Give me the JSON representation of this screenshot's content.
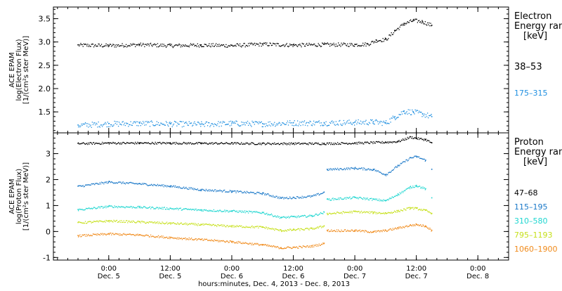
{
  "chart_data": [
    {
      "type": "scatter",
      "ylabel": [
        "ACE EPAM",
        "log(Electron Flux)",
        "[1/(cm²s ster MeV)]"
      ],
      "ylim": [
        1.05,
        3.75
      ],
      "y_ticks": [
        1.5,
        2.0,
        2.5,
        3.0,
        3.5
      ],
      "y_tick_labels": [
        "1.5",
        "2.0",
        "2.5",
        "3.0",
        "3.5"
      ],
      "legend_title": [
        "Electron",
        "Energy ranges",
        "[keV]"
      ],
      "legend_placement": "right",
      "series": [
        {
          "name": "38–53",
          "color": "#000000",
          "points": [
            [
              -0.5,
              2.94
            ],
            [
              0.0,
              2.93
            ],
            [
              0.5,
              2.95
            ],
            [
              1.0,
              2.93
            ],
            [
              1.5,
              2.94
            ],
            [
              2.0,
              2.93
            ],
            [
              2.5,
              2.96
            ],
            [
              3.0,
              2.94
            ],
            [
              3.5,
              2.95
            ],
            [
              4.0,
              2.95
            ],
            [
              4.2,
              2.96
            ],
            [
              4.35,
              3.04
            ],
            [
              4.5,
              3.06
            ],
            [
              4.65,
              3.25
            ],
            [
              4.8,
              3.4
            ],
            [
              4.95,
              3.47
            ],
            [
              5.1,
              3.44
            ],
            [
              5.25,
              3.36
            ]
          ]
        },
        {
          "name": "175–315",
          "color": "#1f8fe0",
          "points": [
            [
              -0.5,
              1.22
            ],
            [
              0.0,
              1.25
            ],
            [
              0.5,
              1.26
            ],
            [
              1.0,
              1.25
            ],
            [
              1.5,
              1.24
            ],
            [
              2.0,
              1.26
            ],
            [
              2.5,
              1.25
            ],
            [
              3.0,
              1.27
            ],
            [
              3.5,
              1.27
            ],
            [
              4.0,
              1.28
            ],
            [
              4.3,
              1.29
            ],
            [
              4.5,
              1.27
            ],
            [
              4.65,
              1.4
            ],
            [
              4.8,
              1.52
            ],
            [
              4.95,
              1.5
            ],
            [
              5.1,
              1.46
            ],
            [
              5.25,
              1.4
            ]
          ]
        }
      ]
    },
    {
      "type": "scatter",
      "ylabel": [
        "ACE EPAM",
        "log(Proton Flux)",
        "[1/(cm²s ster MeV)]"
      ],
      "ylim": [
        -1.1,
        3.8
      ],
      "y_ticks": [
        -1,
        0,
        1,
        2,
        3
      ],
      "y_tick_labels": [
        "-1",
        "0",
        "1",
        "2",
        "3"
      ],
      "legend_title": [
        "Proton",
        "Energy ranges",
        "[keV]"
      ],
      "legend_placement": "right",
      "series": [
        {
          "name": "47–68",
          "color": "#000000",
          "points": [
            [
              -0.5,
              3.4
            ],
            [
              0.0,
              3.42
            ],
            [
              0.5,
              3.42
            ],
            [
              1.0,
              3.42
            ],
            [
              1.5,
              3.41
            ],
            [
              2.0,
              3.41
            ],
            [
              2.5,
              3.4
            ],
            [
              3.0,
              3.4
            ],
            [
              3.5,
              3.4
            ],
            [
              4.0,
              3.42
            ],
            [
              4.5,
              3.45
            ],
            [
              4.7,
              3.48
            ],
            [
              4.9,
              3.65
            ],
            [
              5.0,
              3.6
            ],
            [
              5.15,
              3.55
            ],
            [
              5.25,
              3.42
            ]
          ]
        },
        {
          "name": "115–195",
          "color": "#1a78c8",
          "points": [
            [
              -0.5,
              1.75
            ],
            [
              0.0,
              1.92
            ],
            [
              0.5,
              1.85
            ],
            [
              1.0,
              1.76
            ],
            [
              1.5,
              1.62
            ],
            [
              2.0,
              1.56
            ],
            [
              2.5,
              1.48
            ],
            [
              2.8,
              1.3
            ],
            [
              3.0,
              1.32
            ],
            [
              3.3,
              1.37
            ],
            [
              3.5,
              1.52
            ],
            [
              3.55,
              2.4
            ],
            [
              4.0,
              2.45
            ],
            [
              4.3,
              2.4
            ],
            [
              4.5,
              2.2
            ],
            [
              4.7,
              2.55
            ],
            [
              4.9,
              2.85
            ],
            [
              5.0,
              2.9
            ],
            [
              5.15,
              2.75
            ],
            [
              5.25,
              2.4
            ]
          ]
        },
        {
          "name": "310–580",
          "color": "#1ed6d0",
          "points": [
            [
              -0.5,
              0.85
            ],
            [
              0.0,
              0.98
            ],
            [
              0.5,
              0.95
            ],
            [
              1.0,
              0.9
            ],
            [
              1.5,
              0.84
            ],
            [
              2.0,
              0.8
            ],
            [
              2.5,
              0.74
            ],
            [
              2.8,
              0.55
            ],
            [
              3.0,
              0.58
            ],
            [
              3.3,
              0.62
            ],
            [
              3.5,
              0.75
            ],
            [
              3.55,
              1.25
            ],
            [
              4.0,
              1.32
            ],
            [
              4.3,
              1.25
            ],
            [
              4.5,
              1.2
            ],
            [
              4.7,
              1.45
            ],
            [
              4.9,
              1.72
            ],
            [
              5.0,
              1.78
            ],
            [
              5.15,
              1.65
            ],
            [
              5.25,
              1.3
            ]
          ]
        },
        {
          "name": "795–1193",
          "color": "#c6e01a",
          "points": [
            [
              -0.5,
              0.35
            ],
            [
              0.0,
              0.42
            ],
            [
              0.5,
              0.38
            ],
            [
              1.0,
              0.33
            ],
            [
              1.5,
              0.28
            ],
            [
              2.0,
              0.22
            ],
            [
              2.5,
              0.18
            ],
            [
              2.8,
              0.05
            ],
            [
              3.0,
              0.08
            ],
            [
              3.3,
              0.12
            ],
            [
              3.5,
              0.22
            ],
            [
              3.55,
              0.7
            ],
            [
              4.0,
              0.78
            ],
            [
              4.3,
              0.74
            ],
            [
              4.5,
              0.72
            ],
            [
              4.7,
              0.8
            ],
            [
              4.9,
              0.92
            ],
            [
              5.0,
              0.9
            ],
            [
              5.15,
              0.82
            ],
            [
              5.25,
              0.7
            ]
          ]
        },
        {
          "name": "1060–1900",
          "color": "#f08a1a",
          "points": [
            [
              -0.5,
              -0.15
            ],
            [
              0.0,
              -0.08
            ],
            [
              0.5,
              -0.12
            ],
            [
              1.0,
              -0.22
            ],
            [
              1.5,
              -0.3
            ],
            [
              2.0,
              -0.38
            ],
            [
              2.5,
              -0.5
            ],
            [
              2.8,
              -0.62
            ],
            [
              3.0,
              -0.6
            ],
            [
              3.3,
              -0.55
            ],
            [
              3.5,
              -0.45
            ],
            [
              3.55,
              0.05
            ],
            [
              4.0,
              0.05
            ],
            [
              4.3,
              0.0
            ],
            [
              4.5,
              0.05
            ],
            [
              4.7,
              0.15
            ],
            [
              4.9,
              0.25
            ],
            [
              5.0,
              0.28
            ],
            [
              5.15,
              0.22
            ],
            [
              5.25,
              0.05
            ]
          ]
        }
      ]
    }
  ],
  "x_axis": {
    "xlim": [
      -0.9,
      6.5
    ],
    "xlabel": "hours:minutes, Dec.  4, 2013 - Dec.  8, 2013",
    "ticks": [
      {
        "x": 0,
        "time": "0:00",
        "day": "Dec. 5"
      },
      {
        "x": 1,
        "time": "12:00",
        "day": "Dec. 5"
      },
      {
        "x": 2,
        "time": "0:00",
        "day": "Dec. 6"
      },
      {
        "x": 3,
        "time": "12:00",
        "day": "Dec. 6"
      },
      {
        "x": 4,
        "time": "0:00",
        "day": "Dec. 7"
      },
      {
        "x": 5,
        "time": "12:00",
        "day": "Dec. 7"
      },
      {
        "x": 6,
        "time": "0:00",
        "day": "Dec. 8"
      }
    ],
    "minor_per_major": 6
  }
}
